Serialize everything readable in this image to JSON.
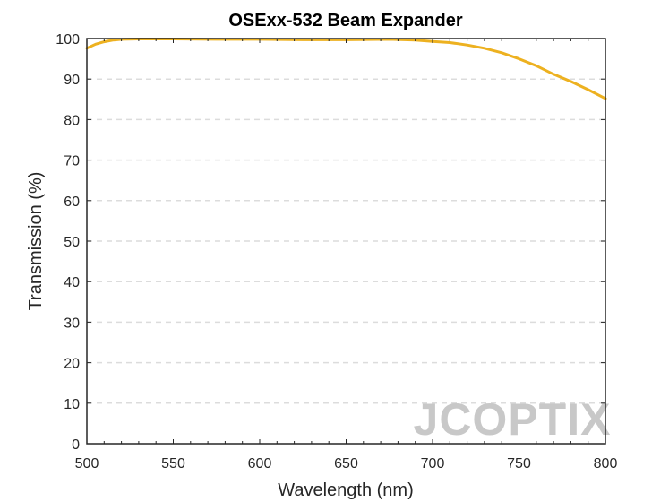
{
  "chart_data": {
    "type": "line",
    "title": "OSExx-532 Beam Expander",
    "xlabel": "Wavelength (nm)",
    "ylabel": "Transmission (%)",
    "xlim": [
      500,
      800
    ],
    "ylim": [
      0,
      100
    ],
    "xticks": [
      500,
      550,
      600,
      650,
      700,
      750,
      800
    ],
    "yticks": [
      0,
      10,
      20,
      30,
      40,
      50,
      60,
      70,
      80,
      90,
      100
    ],
    "grid": "horizontal dashed",
    "series": [
      {
        "color": "#edb120",
        "x": [
          500,
          505,
          510,
          515,
          520,
          530,
          550,
          575,
          600,
          625,
          650,
          675,
          690,
          700,
          710,
          720,
          730,
          740,
          750,
          760,
          770,
          780,
          790,
          800
        ],
        "y": [
          97.6,
          98.6,
          99.2,
          99.6,
          99.8,
          99.9,
          99.9,
          99.8,
          99.8,
          99.7,
          99.7,
          99.8,
          99.6,
          99.3,
          99.0,
          98.4,
          97.6,
          96.5,
          95.0,
          93.3,
          91.2,
          89.4,
          87.4,
          85.2
        ]
      }
    ]
  },
  "watermark": "JCOPTIX"
}
